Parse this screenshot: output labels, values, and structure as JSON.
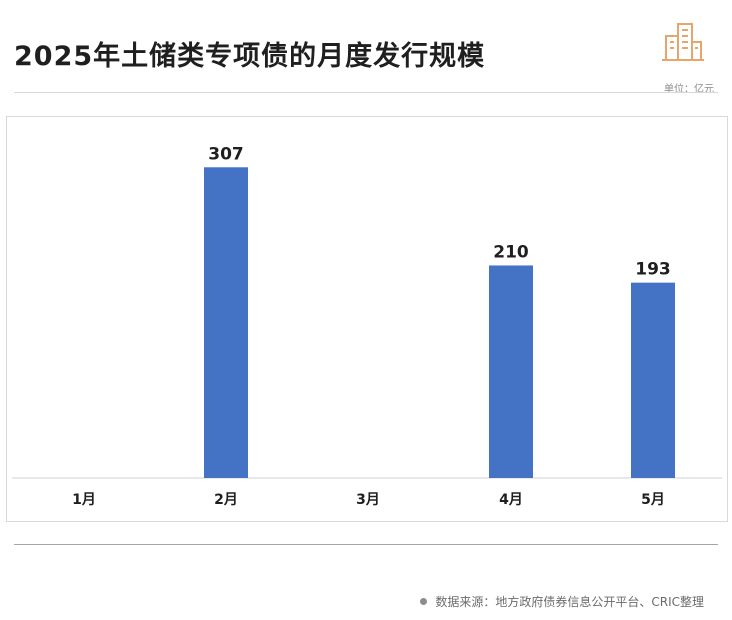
{
  "header": {
    "title": "2025年土储类专项债的月度发行规模",
    "unit": "单位：亿元"
  },
  "footer": {
    "source": "数据来源：地方政府债券信息公开平台、CRIC整理"
  },
  "colors": {
    "bar": "#4472C4",
    "logo": "#E8A56B"
  },
  "chart_data": {
    "type": "bar",
    "title": "2025年土储类专项债的月度发行规模",
    "categories": [
      "1月",
      "2月",
      "3月",
      "4月",
      "5月"
    ],
    "values": [
      null,
      307,
      null,
      210,
      193
    ],
    "data_labels": [
      "",
      "307",
      "",
      "210",
      "193"
    ],
    "ylim": [
      0,
      330
    ],
    "grid": false,
    "legend": "none"
  }
}
